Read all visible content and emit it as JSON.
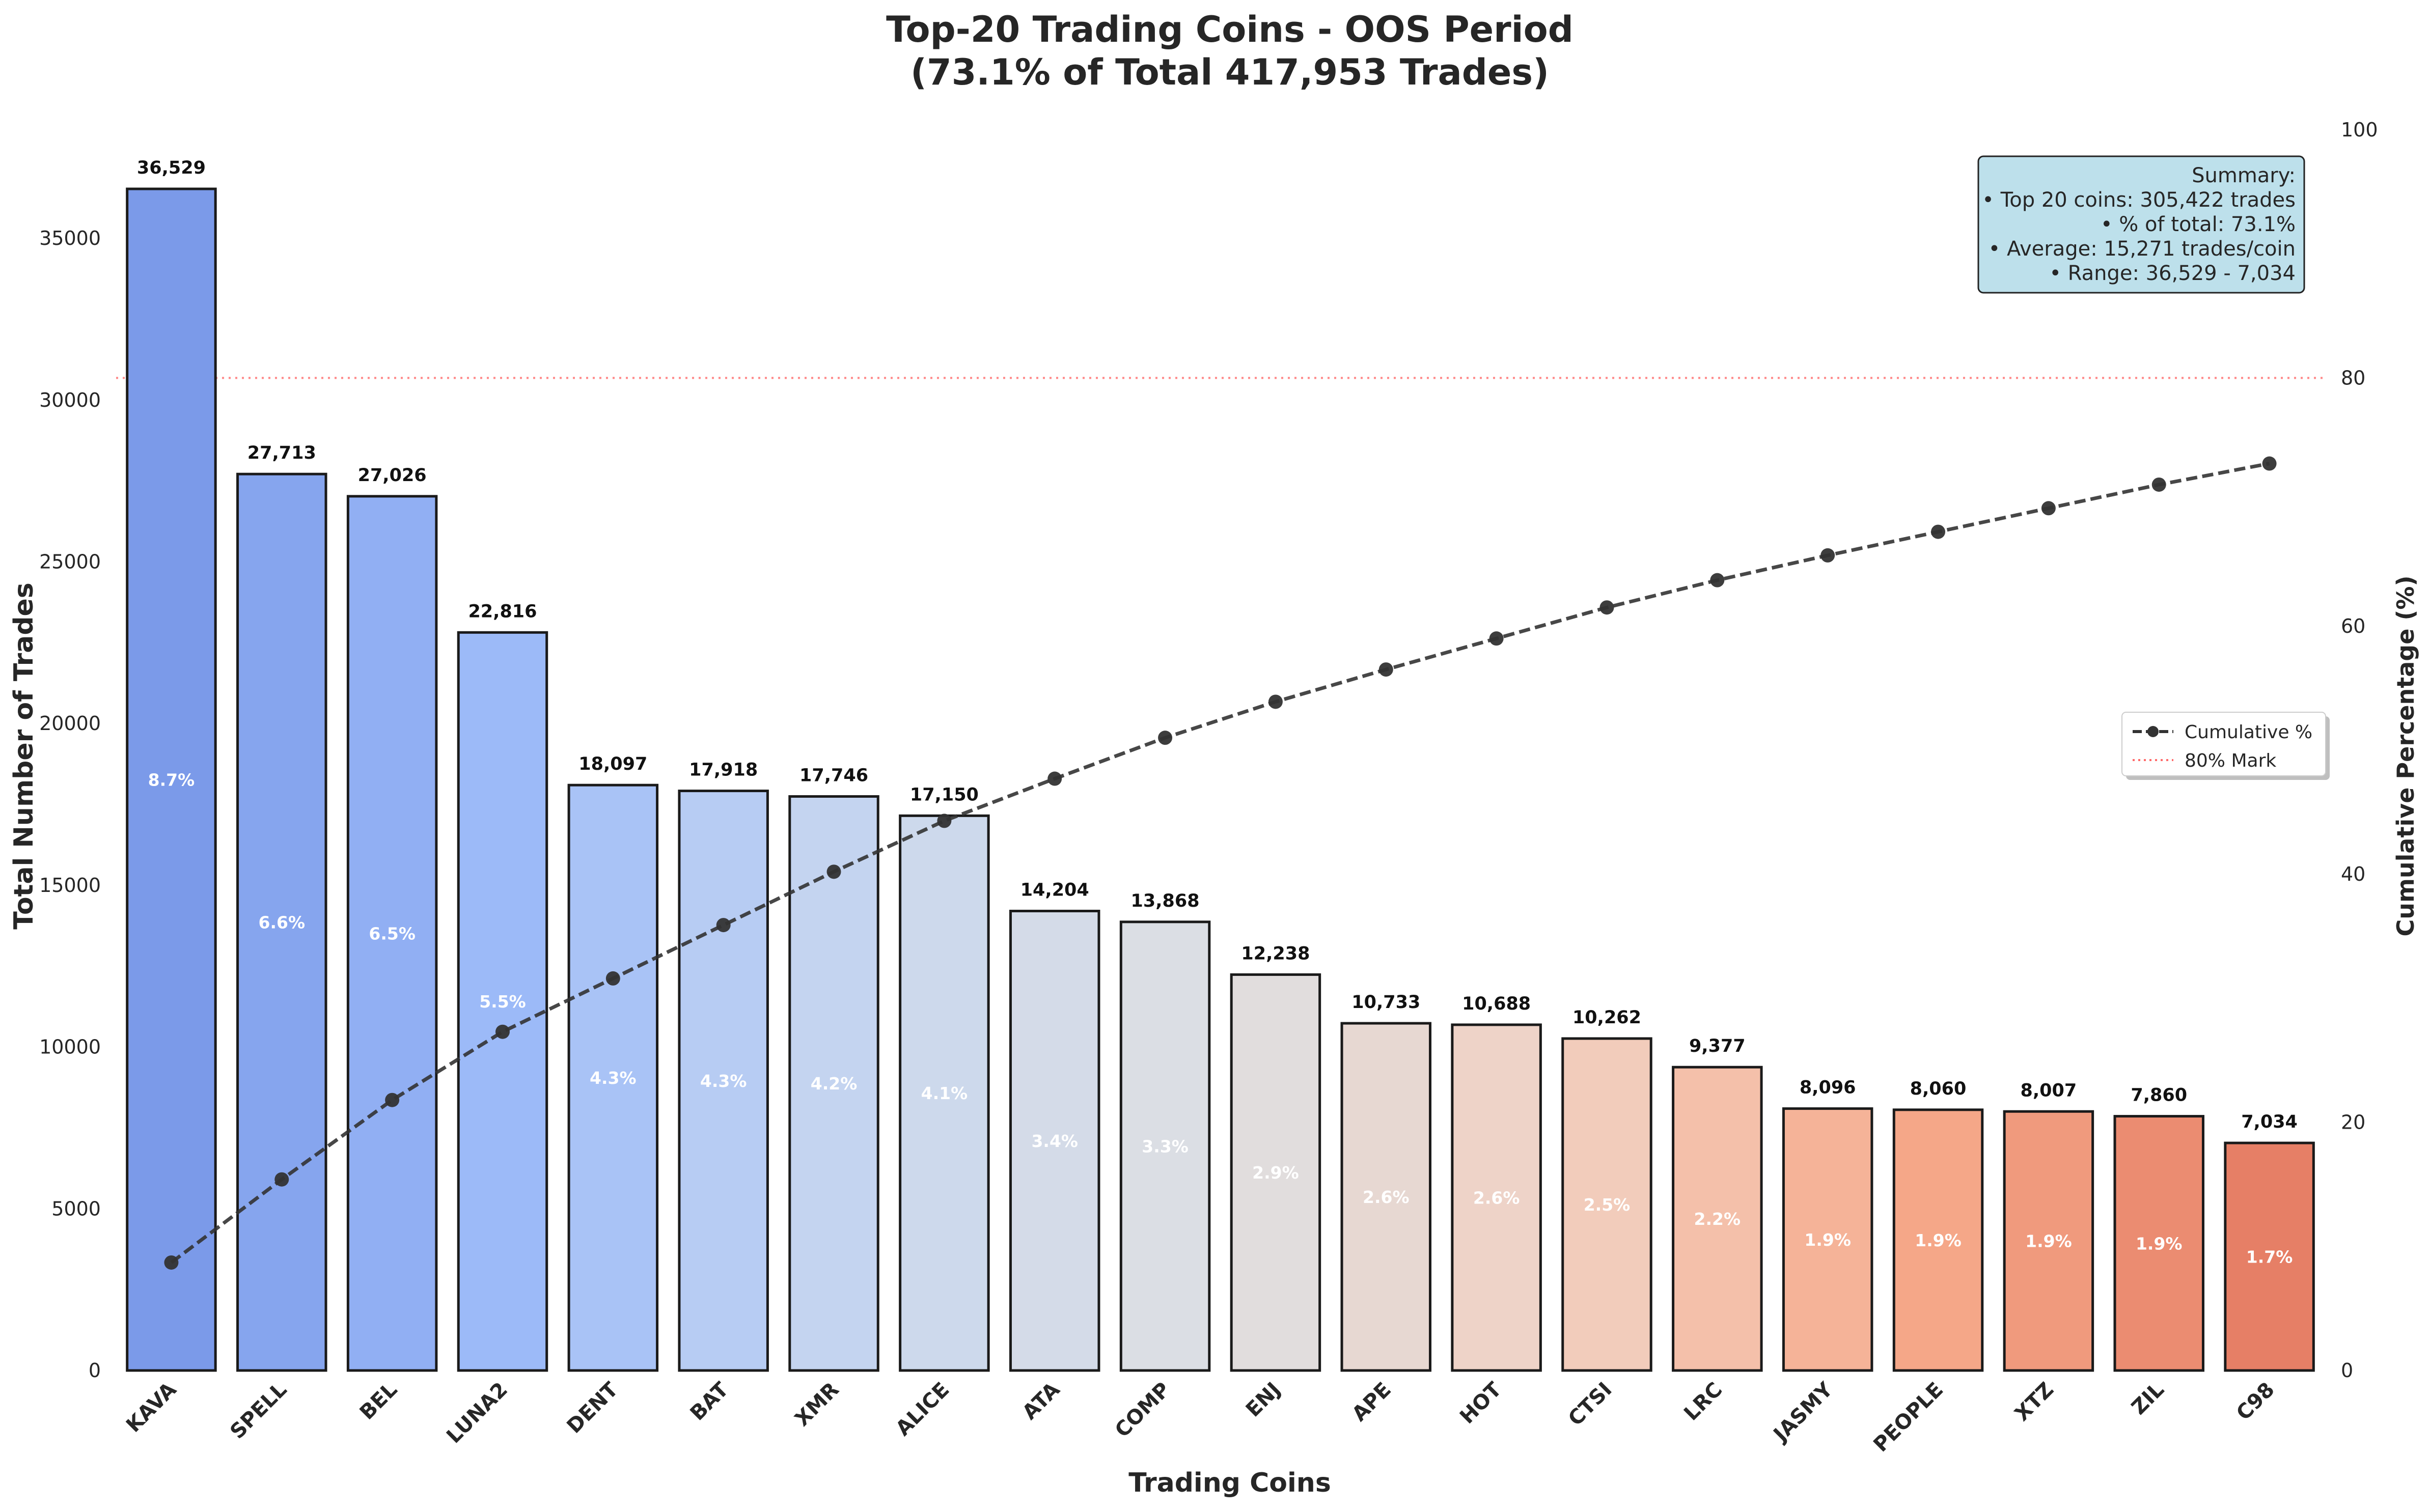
{
  "chart_data": {
    "type": "bar",
    "title": "Top-20 Trading Coins - OOS Period",
    "subtitle": "(73.1% of Total 417,953 Trades)",
    "xlabel": "Trading Coins",
    "ylabel": "Total Number of Trades",
    "y2label": "Cumulative Percentage (%)",
    "ylim": [
      0,
      38355
    ],
    "y2lim": [
      0,
      100
    ],
    "yticks": [
      "0",
      "5000",
      "10000",
      "15000",
      "20000",
      "25000",
      "30000",
      "35000"
    ],
    "y2ticks": [
      "0",
      "20",
      "40",
      "60",
      "80",
      "100"
    ],
    "categories": [
      "KAVA",
      "SPELL",
      "BEL",
      "LUNA2",
      "DENT",
      "BAT",
      "XMR",
      "ALICE",
      "ATA",
      "COMP",
      "ENJ",
      "APE",
      "HOT",
      "CTSI",
      "LRC",
      "JASMY",
      "PEOPLE",
      "XTZ",
      "ZIL",
      "C98"
    ],
    "values": [
      36529,
      27713,
      27026,
      22816,
      18097,
      17918,
      17746,
      17150,
      14204,
      13868,
      12238,
      10733,
      10688,
      10262,
      9377,
      8096,
      8060,
      8007,
      7860,
      7034
    ],
    "value_labels": [
      "36,529",
      "27,713",
      "27,026",
      "22,816",
      "18,097",
      "17,918",
      "17,746",
      "17,150",
      "14,204",
      "13,868",
      "12,238",
      "10,733",
      "10,688",
      "10,262",
      "9,377",
      "8,096",
      "8,060",
      "8,007",
      "7,860",
      "7,034"
    ],
    "percent_labels": [
      "8.7%",
      "6.6%",
      "6.5%",
      "5.5%",
      "4.3%",
      "4.3%",
      "4.2%",
      "4.1%",
      "3.4%",
      "3.3%",
      "2.9%",
      "2.6%",
      "2.6%",
      "2.5%",
      "2.2%",
      "1.9%",
      "1.9%",
      "1.9%",
      "1.9%",
      "1.7%"
    ],
    "series": [
      {
        "name": "Cumulative %",
        "type": "line",
        "axis": "right",
        "values": [
          8.7,
          15.4,
          21.8,
          27.3,
          31.6,
          35.9,
          40.2,
          44.3,
          47.7,
          51.0,
          53.9,
          56.5,
          59.0,
          61.5,
          63.7,
          65.7,
          67.6,
          69.5,
          71.4,
          73.1
        ]
      }
    ],
    "reference_line": {
      "name": "80% Mark",
      "value": 80,
      "axis": "right",
      "color": "#ff6b6b"
    },
    "summary": {
      "title": "Summary:",
      "lines": [
        "• Top 20 coins: 305,422 trades",
        "• % of total: 73.1%",
        "• Average: 15,271 trades/coin",
        "• Range: 36,529 - 7,034"
      ]
    },
    "legend_placement": "center-right",
    "grid": false,
    "colors": {
      "bar_gradient": [
        "#7b9ae9",
        "#9ebcf9",
        "#c9d7ef",
        "#dedfe2",
        "#f2d0c1",
        "#f6a98a",
        "#e67f66"
      ],
      "line": "#333333",
      "summary_bg": "#add8e6"
    }
  }
}
